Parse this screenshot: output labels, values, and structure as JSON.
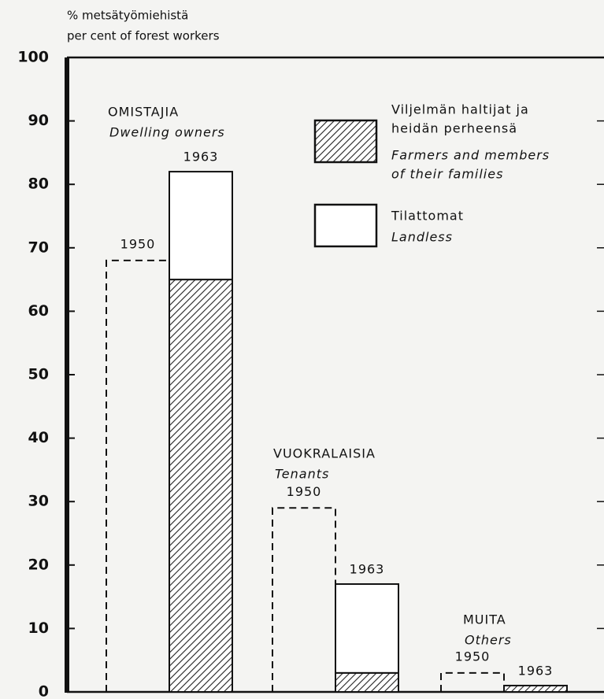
{
  "chart_data": {
    "type": "bar",
    "axis_label": [
      "% metsätyömiehistä",
      "per cent of forest workers"
    ],
    "ylim": [
      0,
      100
    ],
    "yticks": [
      0,
      10,
      20,
      30,
      40,
      50,
      60,
      70,
      80,
      90,
      100
    ],
    "categories": [
      "OMISTAJIA",
      "VUOKRALAISIA",
      "MUITA"
    ],
    "category_subtitles": [
      "Dwelling owners",
      "Tenants",
      "Others"
    ],
    "stack_label": "1963",
    "series": [
      {
        "name": "1950",
        "style": "dashed",
        "values": [
          68,
          29,
          3
        ]
      },
      {
        "name": [
          "Viljelmän haltijat ja",
          "heidän perheensä"
        ],
        "name_en": [
          "Farmers and members",
          "of their families"
        ],
        "fill": "hatched",
        "stack": "1963",
        "values": [
          65,
          3,
          1
        ]
      },
      {
        "name": [
          "Tilattomat"
        ],
        "name_en": [
          "Landless"
        ],
        "fill": "white",
        "stack": "1963",
        "values": [
          17,
          14,
          0
        ]
      }
    ]
  }
}
